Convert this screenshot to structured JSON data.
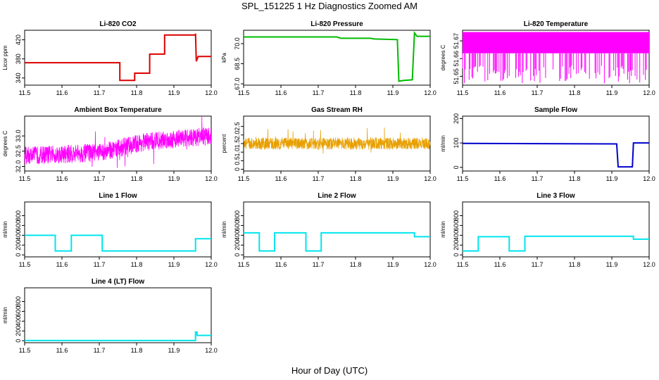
{
  "figure": {
    "title": "SPL_151225  1 Hz Diagnostics Zoomed AM",
    "xlabel": "Hour of Day (UTC)"
  },
  "chart_data": [
    {
      "type": "line",
      "title": "Li-820 CO2",
      "xlabel": "",
      "ylabel": "Licor ppm",
      "xlim": [
        11.5,
        12.0
      ],
      "ylim": [
        325,
        440
      ],
      "xticks": [
        11.5,
        11.6,
        11.7,
        11.8,
        11.9,
        12.0
      ],
      "xtick_labels": [
        "11.5",
        "11.6",
        "11.7",
        "11.8",
        "11.9",
        "12.0"
      ],
      "yticks": [
        340,
        380,
        420
      ],
      "ytick_labels": [
        "340",
        "380",
        "420"
      ],
      "grid": false,
      "series": [
        {
          "color": "#dd0000",
          "x": [
            11.5,
            11.755,
            11.755,
            11.795,
            11.795,
            11.835,
            11.835,
            11.875,
            11.875,
            11.958,
            11.958,
            11.96,
            11.965,
            12.0
          ],
          "y": [
            372,
            372,
            335,
            335,
            350,
            350,
            390,
            390,
            430,
            430,
            433,
            375,
            385,
            385
          ]
        }
      ]
    },
    {
      "type": "line",
      "title": "Li-820 Pressure",
      "xlabel": "",
      "ylabel": "kPa",
      "xlim": [
        11.5,
        12.0
      ],
      "ylim": [
        66.9,
        71.0
      ],
      "xticks": [
        11.5,
        11.6,
        11.7,
        11.8,
        11.9,
        12.0
      ],
      "xtick_labels": [
        "11.5",
        "11.6",
        "11.7",
        "11.8",
        "11.9",
        "12.0"
      ],
      "yticks": [
        67.0,
        68.5,
        70.0
      ],
      "ytick_labels": [
        "67.0",
        "68.5",
        "70.0"
      ],
      "grid": false,
      "series": [
        {
          "color": "#00bb00",
          "x": [
            11.5,
            11.75,
            11.76,
            11.84,
            11.85,
            11.912,
            11.916,
            11.93,
            11.952,
            11.958,
            11.965,
            12.0
          ],
          "y": [
            70.5,
            70.5,
            70.4,
            70.4,
            70.35,
            70.3,
            67.2,
            67.25,
            67.3,
            70.8,
            70.55,
            70.55
          ]
        }
      ]
    },
    {
      "type": "line",
      "title": "Li-820 Temperature",
      "xlabel": "",
      "ylabel": "degrees C",
      "xlim": [
        11.5,
        12.0
      ],
      "ylim": [
        51.645,
        51.676
      ],
      "xticks": [
        11.5,
        11.6,
        11.7,
        11.8,
        11.9,
        12.0
      ],
      "xtick_labels": [
        "11.5",
        "11.6",
        "11.7",
        "11.8",
        "11.9",
        "12.0"
      ],
      "yticks": [
        51.65,
        51.66,
        51.67
      ],
      "ytick_labels": [
        "51.65",
        "51.66",
        "51.67"
      ],
      "grid": false,
      "series": [
        {
          "color": "#ff00ff",
          "style": "band",
          "x_start": 11.5,
          "x_end": 12.0,
          "y_low": 51.663,
          "y_high": 51.675,
          "spike_to": 51.646
        }
      ]
    },
    {
      "type": "line",
      "title": "Ambient Box Temperature",
      "xlabel": "",
      "ylabel": "degrees C",
      "xlim": [
        11.5,
        12.0
      ],
      "ylim": [
        31.85,
        33.65
      ],
      "xticks": [
        11.5,
        11.6,
        11.7,
        11.8,
        11.9,
        12.0
      ],
      "xtick_labels": [
        "11.5",
        "11.6",
        "11.7",
        "11.8",
        "11.9",
        "12.0"
      ],
      "yticks": [
        32.0,
        32.5,
        33.0
      ],
      "ytick_labels": [
        "32.0",
        "32.5",
        "33.0"
      ],
      "grid": false,
      "series": [
        {
          "color": "#ff00ff",
          "style": "noisy",
          "x": [
            11.5,
            11.7,
            11.82,
            11.9,
            12.0
          ],
          "y_center": [
            32.35,
            32.45,
            32.8,
            32.9,
            33.0
          ],
          "spread": 0.3
        }
      ]
    },
    {
      "type": "line",
      "title": "Gas Stream RH",
      "xlabel": "",
      "ylabel": "percent",
      "xlim": [
        11.5,
        12.0
      ],
      "ylim": [
        -0.1,
        3.1
      ],
      "xticks": [
        11.5,
        11.6,
        11.7,
        11.8,
        11.9,
        12.0
      ],
      "xtick_labels": [
        "11.5",
        "11.6",
        "11.7",
        "11.8",
        "11.9",
        "12.0"
      ],
      "yticks": [
        0.0,
        0.5,
        1.0,
        1.5,
        2.0,
        2.5
      ],
      "ytick_labels": [
        "0",
        "0.5",
        "1.0",
        "1.5",
        "2.0",
        "2.5"
      ],
      "grid": false,
      "series": [
        {
          "color": "#e8a000",
          "style": "noisy",
          "x": [
            11.5,
            12.0
          ],
          "y_center": [
            1.5,
            1.5
          ],
          "spread": 0.35
        }
      ]
    },
    {
      "type": "line",
      "title": "Sample Flow",
      "xlabel": "",
      "ylabel": "ml/min",
      "xlim": [
        11.5,
        12.0
      ],
      "ylim": [
        -15,
        210
      ],
      "xticks": [
        11.5,
        11.6,
        11.7,
        11.8,
        11.9,
        12.0
      ],
      "xtick_labels": [
        "11.5",
        "11.6",
        "11.7",
        "11.8",
        "11.9",
        "12.0"
      ],
      "yticks": [
        0,
        100,
        200
      ],
      "ytick_labels": [
        "0",
        "100",
        "200"
      ],
      "grid": false,
      "series": [
        {
          "color": "#0000cc",
          "x": [
            11.5,
            11.913,
            11.917,
            11.955,
            11.958,
            12.0
          ],
          "y": [
            98,
            96,
            2,
            2,
            100,
            100
          ]
        }
      ]
    },
    {
      "type": "line",
      "title": "Line 1 Flow",
      "xlabel": "",
      "ylabel": "ml/min",
      "xlim": [
        11.5,
        12.0
      ],
      "ylim": [
        -40,
        1080
      ],
      "xticks": [
        11.5,
        11.6,
        11.7,
        11.8,
        11.9,
        12.0
      ],
      "xtick_labels": [
        "11.5",
        "11.6",
        "11.7",
        "11.8",
        "11.9",
        "12.0"
      ],
      "yticks": [
        0,
        200,
        400,
        600,
        800
      ],
      "ytick_labels": [
        "0",
        "200",
        "400",
        "600",
        "800"
      ],
      "grid": false,
      "series": [
        {
          "color": "#00e5ee",
          "x": [
            11.5,
            11.582,
            11.582,
            11.625,
            11.625,
            11.708,
            11.708,
            11.958,
            11.958,
            12.0
          ],
          "y": [
            400,
            400,
            80,
            80,
            400,
            400,
            80,
            80,
            330,
            330
          ]
        }
      ]
    },
    {
      "type": "line",
      "title": "Line 2 Flow",
      "xlabel": "",
      "ylabel": "ml/min",
      "xlim": [
        11.5,
        12.0
      ],
      "ylim": [
        -40,
        1080
      ],
      "xticks": [
        11.5,
        11.6,
        11.7,
        11.8,
        11.9,
        12.0
      ],
      "xtick_labels": [
        "11.5",
        "11.6",
        "11.7",
        "11.8",
        "11.9",
        "12.0"
      ],
      "yticks": [
        0,
        200,
        400,
        600,
        800
      ],
      "ytick_labels": [
        "0",
        "200",
        "400",
        "600",
        "800"
      ],
      "grid": false,
      "series": [
        {
          "color": "#00e5ee",
          "x": [
            11.5,
            11.542,
            11.542,
            11.583,
            11.583,
            11.667,
            11.667,
            11.708,
            11.708,
            11.958,
            11.958,
            12.0
          ],
          "y": [
            450,
            450,
            80,
            80,
            450,
            450,
            80,
            80,
            450,
            450,
            370,
            370
          ]
        }
      ]
    },
    {
      "type": "line",
      "title": "Line 3 Flow",
      "xlabel": "",
      "ylabel": "ml/min",
      "xlim": [
        11.5,
        12.0
      ],
      "ylim": [
        -40,
        1080
      ],
      "xticks": [
        11.5,
        11.6,
        11.7,
        11.8,
        11.9,
        12.0
      ],
      "xtick_labels": [
        "11.5",
        "11.6",
        "11.7",
        "11.8",
        "11.9",
        "12.0"
      ],
      "yticks": [
        0,
        200,
        400,
        600,
        800
      ],
      "ytick_labels": [
        "0",
        "200",
        "400",
        "600",
        "800"
      ],
      "grid": false,
      "series": [
        {
          "color": "#00e5ee",
          "x": [
            11.5,
            11.542,
            11.542,
            11.625,
            11.625,
            11.667,
            11.667,
            11.958,
            11.958,
            12.0
          ],
          "y": [
            80,
            80,
            370,
            370,
            80,
            80,
            380,
            380,
            320,
            320
          ]
        }
      ]
    },
    {
      "type": "line",
      "title": "Line 4 (LT) Flow",
      "xlabel": "",
      "ylabel": "ml/min",
      "xlim": [
        11.5,
        12.0
      ],
      "ylim": [
        -40,
        1080
      ],
      "xticks": [
        11.5,
        11.6,
        11.7,
        11.8,
        11.9,
        12.0
      ],
      "xtick_labels": [
        "11.5",
        "11.6",
        "11.7",
        "11.8",
        "11.9",
        "12.0"
      ],
      "yticks": [
        0,
        200,
        400,
        600,
        800
      ],
      "ytick_labels": [
        "0",
        "200",
        "400",
        "600",
        "800"
      ],
      "grid": false,
      "series": [
        {
          "color": "#00e5ee",
          "x": [
            11.5,
            11.958,
            11.958,
            11.962,
            11.962,
            12.0
          ],
          "y": [
            5,
            5,
            180,
            180,
            110,
            110
          ]
        }
      ]
    }
  ]
}
